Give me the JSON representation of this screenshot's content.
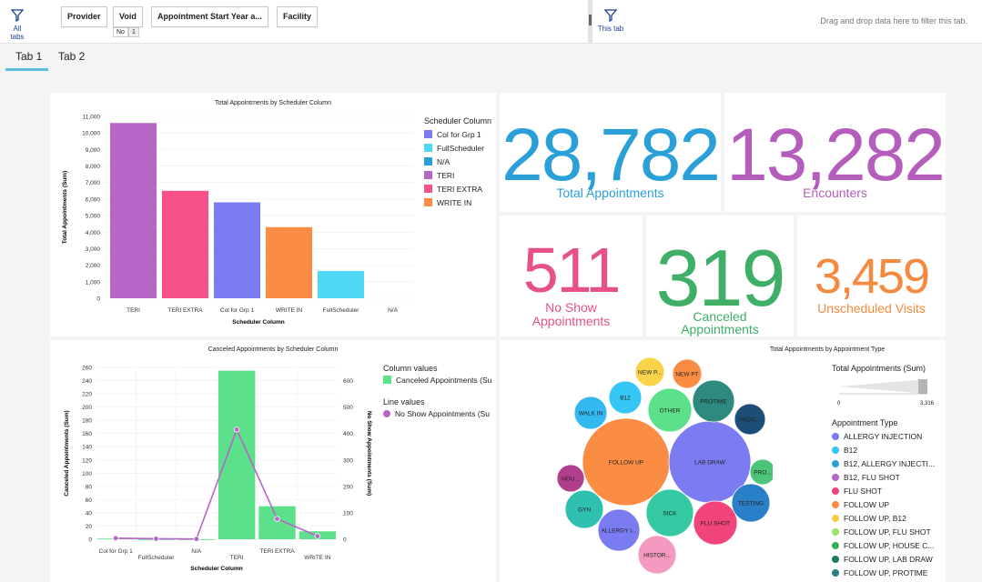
{
  "toolbar": {
    "all_tabs_label": "All tabs",
    "this_tab_label": "This tab",
    "filters": [
      "Provider",
      "Void",
      "Appointment Start Year a...",
      "Facility"
    ],
    "void_value": "No",
    "void_count": "1",
    "drop_hint": "Drag and drop data here to filter this tab."
  },
  "tabs": [
    "Tab 1",
    "Tab 2"
  ],
  "kpis": {
    "total_appointments": {
      "value": "28,782",
      "label": "Total Appointments",
      "color": "#2a9fd8"
    },
    "encounters": {
      "value": "13,282",
      "label": "Encounters",
      "color": "#b45dbc"
    },
    "no_show": {
      "value": "511",
      "label_line1": "No Show",
      "label_line2": "Appointments",
      "color": "#e8508a"
    },
    "canceled": {
      "value": "319",
      "label_line1": "Canceled",
      "label_line2": "Appointments",
      "color": "#3fae67"
    },
    "unscheduled": {
      "value": "3,459",
      "label": "Unscheduled Visits",
      "color": "#f5893e"
    }
  },
  "chart_data": [
    {
      "type": "bar",
      "title": "Total Appointments by Scheduler Column",
      "xlabel": "Scheduler Column",
      "ylabel": "Total Appointments (Sum)",
      "categories": [
        "TERI",
        "TERI EXTRA",
        "Col for Grp 1",
        "WRITE IN",
        "FullScheduler",
        "N/A"
      ],
      "values": [
        10600,
        6500,
        5800,
        4300,
        1650,
        0
      ],
      "colors": [
        "#b865c8",
        "#f7508a",
        "#7b7cf1",
        "#fb8c43",
        "#4fd8f6",
        "#2a9fd8"
      ],
      "yticks": [
        "0",
        "1,000",
        "2,000",
        "3,000",
        "4,000",
        "5,000",
        "6,000",
        "7,000",
        "8,000",
        "9,000",
        "10,000",
        "11,000"
      ],
      "ylim": [
        0,
        11000
      ],
      "legend_title": "Scheduler Column",
      "legend": [
        {
          "name": "Col for Grp 1",
          "color": "#7b7cf1"
        },
        {
          "name": "FullScheduler",
          "color": "#4fd8f6"
        },
        {
          "name": "N/A",
          "color": "#2a9fd8"
        },
        {
          "name": "TERI",
          "color": "#b865c8"
        },
        {
          "name": "TERI EXTRA",
          "color": "#f7508a"
        },
        {
          "name": "WRITE IN",
          "color": "#fb8c43"
        }
      ]
    },
    {
      "type": "bar+line",
      "title": "Canceled Appointments by Scheduler Column",
      "xlabel": "Scheduler Column",
      "ylabel": "Canceled Appointments (Sum)",
      "y2label": "No Show Appointments (Sum)",
      "categories": [
        "Col for Grp 1",
        "FullScheduler",
        "N/A",
        "TERI",
        "TERI EXTRA",
        "WRITE IN"
      ],
      "bar_values": [
        1,
        0,
        0,
        255,
        50,
        12
      ],
      "line_values": [
        4,
        2,
        1,
        415,
        77,
        12
      ],
      "yticks": [
        "0",
        "20",
        "40",
        "60",
        "80",
        "100",
        "120",
        "140",
        "160",
        "180",
        "200",
        "220",
        "240",
        "260"
      ],
      "y2ticks": [
        "0",
        "100",
        "200",
        "300",
        "400",
        "500",
        "600"
      ],
      "ylim": [
        0,
        260
      ],
      "y2lim": [
        0,
        650
      ],
      "bar_color": "#5de08a",
      "line_color": "#b865c8",
      "column_values_title": "Column values",
      "column_series": "Canceled Appointments (Su",
      "line_values_title": "Line values",
      "line_series": "No Show Appointments (Su"
    },
    {
      "type": "bubble",
      "title": "Total Appointments by Appointment Type",
      "size_legend_title": "Total Appointments (Sum)",
      "size_min": "0",
      "size_max": "3,316",
      "color_legend_title": "Appointment Type",
      "bubbles": [
        {
          "label": "FOLLOW UP",
          "color": "#fb8c43"
        },
        {
          "label": "LAB DRAW",
          "color": "#7b7cf1"
        },
        {
          "label": "SICK",
          "color": "#34c9a3"
        },
        {
          "label": "OTHER",
          "color": "#5de08a"
        },
        {
          "label": "ALLERGY I...",
          "color": "#7b7cf1"
        },
        {
          "label": "FLU SHOT",
          "color": "#f1447a"
        },
        {
          "label": "GYN",
          "color": "#30c0b0"
        },
        {
          "label": "PROTIME",
          "color": "#2e8a7e"
        },
        {
          "label": "TESTING",
          "color": "#2a7fc9"
        },
        {
          "label": "HISTOR...",
          "color": "#f49ac0"
        },
        {
          "label": "WALK IN",
          "color": "#32b9f0"
        },
        {
          "label": "B12",
          "color": "#35c6f6"
        },
        {
          "label": "NEW P...",
          "color": "#f9d44a"
        },
        {
          "label": "NEW PT",
          "color": "#fb8c43"
        },
        {
          "label": "PROC...",
          "color": "#1d4e78"
        },
        {
          "label": "PRO...",
          "color": "#4cc57a"
        },
        {
          "label": "HOU...",
          "color": "#b03e8b"
        }
      ],
      "legend": [
        {
          "name": "ALLERGY INJECTION",
          "color": "#7b7cf1"
        },
        {
          "name": "B12",
          "color": "#35c6f6"
        },
        {
          "name": "B12, ALLERGY INJECTI...",
          "color": "#2a9fd8"
        },
        {
          "name": "B12, FLU SHOT",
          "color": "#b865c8"
        },
        {
          "name": "FLU SHOT",
          "color": "#f1447a"
        },
        {
          "name": "FOLLOW UP",
          "color": "#fb8c43"
        },
        {
          "name": "FOLLOW UP, B12",
          "color": "#f9c94a"
        },
        {
          "name": "FOLLOW UP, FLU SHOT",
          "color": "#9de26a"
        },
        {
          "name": "FOLLOW UP, HOUSE C...",
          "color": "#3cab57"
        },
        {
          "name": "FOLLOW UP, LAB DRAW",
          "color": "#1c7c5a"
        },
        {
          "name": "FOLLOW UP, PROTIME",
          "color": "#2a7c86"
        }
      ]
    }
  ]
}
